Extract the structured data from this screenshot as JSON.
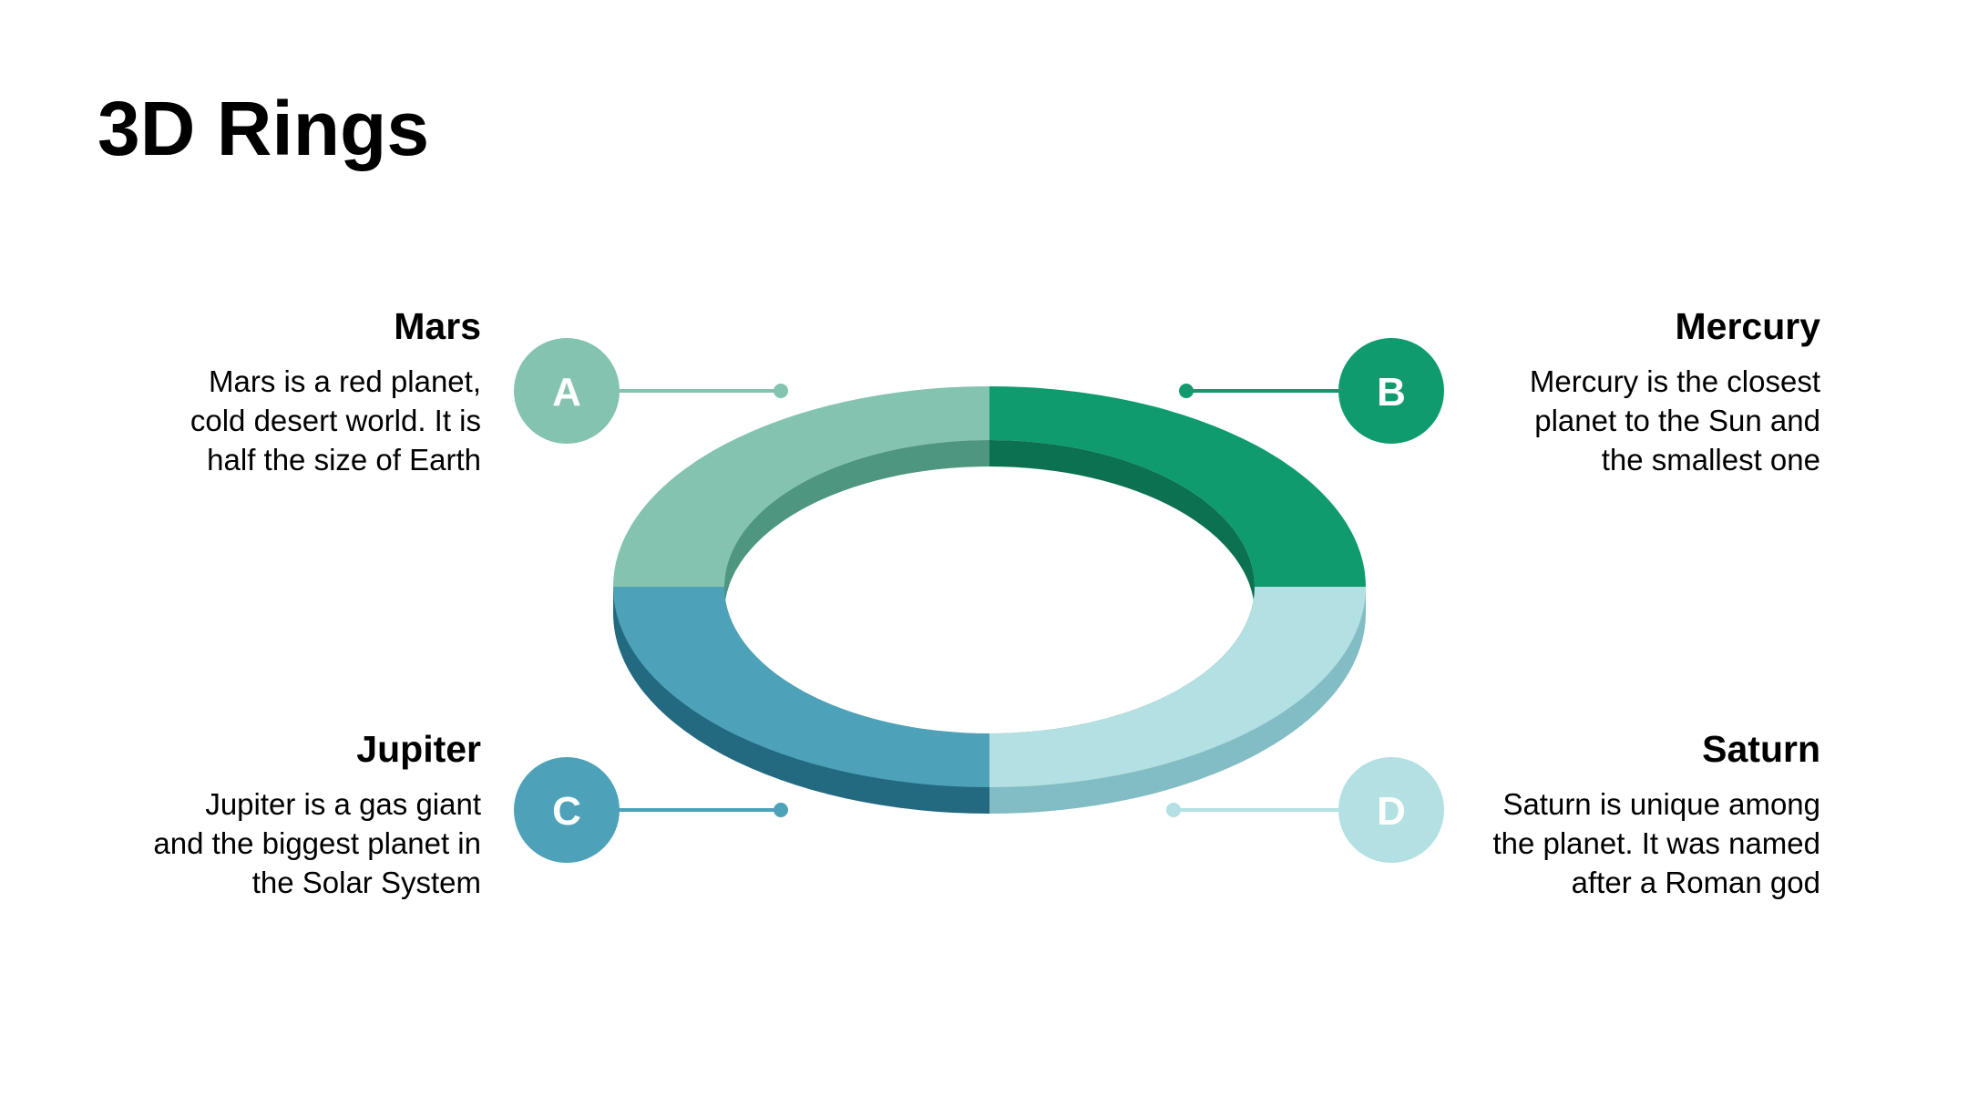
{
  "title": "3D Rings",
  "items": [
    {
      "letter": "A",
      "heading": "Mars",
      "text": "Mars is a red planet,\ncold desert world. It is\nhalf the size of Earth",
      "color": "#84C3B0",
      "side_color": "#4E9680"
    },
    {
      "letter": "B",
      "heading": "Mercury",
      "text": "Mercury is the closest\nplanet to the Sun and\nthe smallest one",
      "color": "#109B6F",
      "side_color": "#0B7150"
    },
    {
      "letter": "C",
      "heading": "Jupiter",
      "text": "Jupiter is a gas giant\nand the biggest planet in\nthe Solar System",
      "color": "#4DA2B9",
      "side_color": "#236A80"
    },
    {
      "letter": "D",
      "heading": "Saturn",
      "text": "Saturn is unique among\nthe planet. It was named\nafter a Roman god",
      "color": "#B3E0E3",
      "side_color": "#82BCC4"
    }
  ]
}
